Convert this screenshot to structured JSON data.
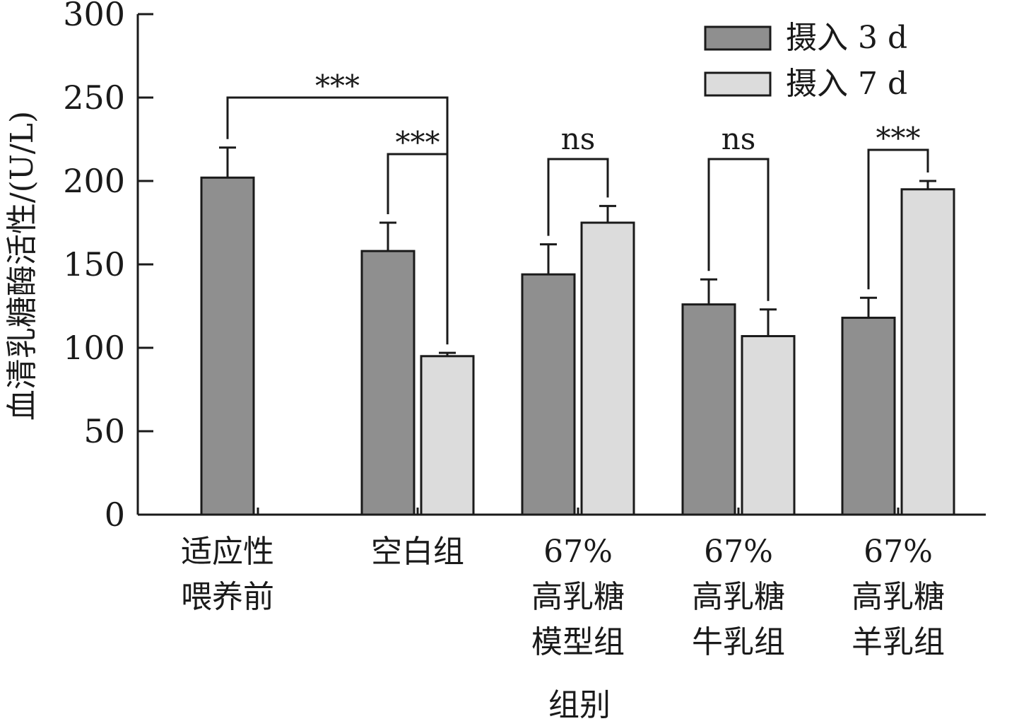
{
  "chart_data": {
    "type": "bar",
    "title": "",
    "xlabel": "组别",
    "ylabel": "血清乳糖酶活性/(U/L)",
    "ylim": [
      0,
      300
    ],
    "yticks": [
      "0",
      "50",
      "100",
      "150",
      "200",
      "250",
      "300"
    ],
    "grid": false,
    "legend_position": "top-right",
    "categories": [
      [
        "适应性",
        "喂养前"
      ],
      [
        "空白组"
      ],
      [
        "67%",
        "高乳糖",
        "模型组"
      ],
      [
        "67%",
        "高乳糖",
        "牛乳组"
      ],
      [
        "67%",
        "高乳糖",
        "羊乳组"
      ]
    ],
    "series": [
      {
        "name": "摄入 3 d",
        "color": "#8f8f8f",
        "values": [
          202,
          158,
          144,
          126,
          118
        ],
        "errors": [
          18,
          17,
          18,
          15,
          12
        ]
      },
      {
        "name": "摄入 7 d",
        "color": "#dcdcdc",
        "values": [
          null,
          95,
          175,
          107,
          195
        ],
        "errors": [
          null,
          2,
          10,
          16,
          5
        ]
      }
    ],
    "significance": [
      {
        "label": "***",
        "from": [
          0,
          0
        ],
        "to": [
          1,
          1
        ]
      },
      {
        "label": "***",
        "from": [
          1,
          0
        ],
        "to": [
          1,
          1
        ]
      },
      {
        "label": "ns",
        "from": [
          2,
          0
        ],
        "to": [
          2,
          1
        ]
      },
      {
        "label": "ns",
        "from": [
          3,
          0
        ],
        "to": [
          3,
          1
        ]
      },
      {
        "label": "***",
        "from": [
          4,
          0
        ],
        "to": [
          4,
          1
        ]
      }
    ]
  }
}
